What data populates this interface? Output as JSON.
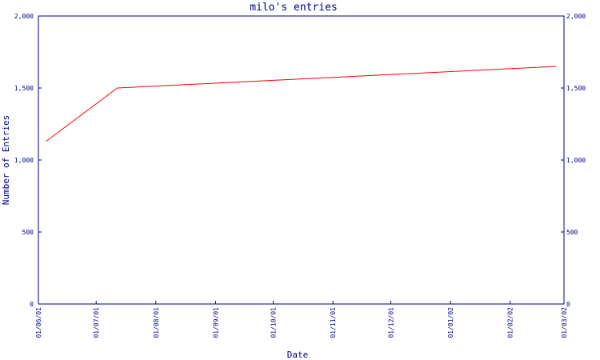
{
  "chart_data": {
    "type": "line",
    "title": "milo's entries",
    "xlabel": "Date",
    "ylabel": "Number of Entries",
    "ylim": [
      0,
      2000
    ],
    "yticks": [
      0,
      500,
      1000,
      1500,
      2000
    ],
    "ytick_labels": [
      "0",
      "500",
      "1,000",
      "1,500",
      "2,000"
    ],
    "xlim": [
      "2001-06-01",
      "2002-03-01"
    ],
    "xticks": [
      "2001-06-01",
      "2001-07-01",
      "2001-08-01",
      "2001-09-01",
      "2001-10-01",
      "2001-11-01",
      "2001-12-01",
      "2002-01-01",
      "2002-02-01",
      "2002-03-01"
    ],
    "xtick_labels": [
      "01/06/01",
      "01/07/01",
      "01/08/01",
      "01/09/01",
      "01/10/01",
      "01/11/01",
      "01/12/01",
      "01/01/02",
      "01/02/02",
      "01/03/02"
    ],
    "grid": false,
    "series": [
      {
        "x": [
          "2001-06-05",
          "2001-07-12",
          "2002-02-25"
        ],
        "y": [
          1130,
          1500,
          1650
        ],
        "color": "#ff0000"
      }
    ],
    "colors": {
      "axis": "#000080",
      "title": "#000080",
      "line": "#ff0000"
    }
  }
}
